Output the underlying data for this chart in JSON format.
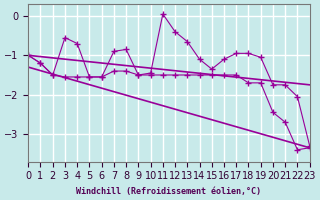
{
  "xlabel": "Windchill (Refroidissement éolien,°C)",
  "bg_color": "#c8eaea",
  "grid_color": "#ffffff",
  "line_color": "#990099",
  "x_data": [
    0,
    1,
    2,
    3,
    4,
    5,
    6,
    7,
    8,
    9,
    10,
    11,
    12,
    13,
    14,
    15,
    16,
    17,
    18,
    19,
    20,
    21,
    22,
    23
  ],
  "series1": [
    -1.0,
    -1.2,
    -1.5,
    -0.55,
    -0.7,
    -1.55,
    -1.55,
    -0.9,
    -0.85,
    -1.5,
    -1.45,
    0.05,
    -0.4,
    -0.65,
    -1.1,
    -1.35,
    -1.1,
    -0.95,
    -0.95,
    -1.05,
    -1.75,
    -1.75,
    -2.05,
    -3.3
  ],
  "series2": [
    -1.0,
    -1.2,
    -1.5,
    -1.55,
    -1.55,
    -1.55,
    -1.55,
    -1.4,
    -1.4,
    -1.5,
    -1.5,
    -1.5,
    -1.5,
    -1.5,
    -1.5,
    -1.5,
    -1.5,
    -1.5,
    -1.7,
    -1.7,
    -2.45,
    -2.7,
    -3.4,
    -3.35
  ],
  "trend1_x": [
    0,
    23
  ],
  "trend1_y": [
    -1.0,
    -1.75
  ],
  "trend2_x": [
    0,
    23
  ],
  "trend2_y": [
    -1.3,
    -3.35
  ],
  "xlim": [
    0,
    23
  ],
  "ylim": [
    -3.7,
    0.3
  ],
  "yticks": [
    0,
    -1,
    -2,
    -3
  ],
  "xtick_labels": [
    "0",
    "1",
    "2",
    "3",
    "4",
    "5",
    "6",
    "7",
    "8",
    "9",
    "10",
    "11",
    "12",
    "13",
    "14",
    "15",
    "16",
    "17",
    "18",
    "19",
    "20",
    "21",
    "22",
    "23"
  ]
}
